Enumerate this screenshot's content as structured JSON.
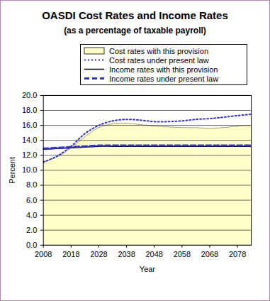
{
  "chart_data": {
    "type": "line",
    "title": "OASDI Cost Rates and Income Rates",
    "subtitle": "(as a percentage of taxable payroll)",
    "x_label": "Year",
    "y_label": "Percent",
    "x": [
      2008,
      2013,
      2018,
      2023,
      2028,
      2033,
      2038,
      2043,
      2048,
      2053,
      2058,
      2063,
      2068,
      2073,
      2078,
      2083
    ],
    "series": [
      {
        "name": "Cost rates with this provision",
        "type": "area",
        "color": "#ffffcc",
        "line_style": "solid",
        "values": [
          11.1,
          11.8,
          13.0,
          14.5,
          15.7,
          16.2,
          16.3,
          16.1,
          15.9,
          15.8,
          15.7,
          15.7,
          15.6,
          15.7,
          15.9,
          16.0
        ]
      },
      {
        "name": "Cost rates under present law",
        "type": "line",
        "color": "#3333cc",
        "line_style": "dotted",
        "values": [
          11.1,
          11.9,
          13.2,
          14.9,
          16.0,
          16.6,
          16.8,
          16.7,
          16.5,
          16.5,
          16.6,
          16.8,
          16.9,
          17.1,
          17.3,
          17.5
        ]
      },
      {
        "name": "Income rates with this provision",
        "type": "line",
        "color": "#000000",
        "line_style": "solid",
        "values": [
          12.8,
          12.9,
          13.0,
          13.1,
          13.2,
          13.2,
          13.2,
          13.2,
          13.2,
          13.2,
          13.2,
          13.2,
          13.2,
          13.2,
          13.2,
          13.2
        ]
      },
      {
        "name": "Income rates under present law",
        "type": "line",
        "color": "#3333cc",
        "line_style": "dashed",
        "values": [
          12.9,
          13.0,
          13.1,
          13.2,
          13.3,
          13.3,
          13.3,
          13.3,
          13.3,
          13.3,
          13.3,
          13.3,
          13.3,
          13.3,
          13.3,
          13.3
        ]
      }
    ],
    "xlim": [
      2008,
      2083
    ],
    "xticks": [
      2008,
      2018,
      2028,
      2038,
      2048,
      2058,
      2068,
      2078
    ],
    "ylim": [
      0,
      20
    ],
    "yticks": [
      {
        "value": 0,
        "label": "0.0"
      },
      {
        "value": 2,
        "label": "2.0"
      },
      {
        "value": 4,
        "label": "4.0"
      },
      {
        "value": 6,
        "label": "6.0"
      },
      {
        "value": 8,
        "label": "8.0"
      },
      {
        "value": 10,
        "label": "10.0"
      },
      {
        "value": 12,
        "label": "12.0"
      },
      {
        "value": 14,
        "label": "14.0"
      },
      {
        "value": 16,
        "label": "16.0"
      },
      {
        "value": 18,
        "label": "18.0"
      },
      {
        "value": 20,
        "label": "20.0"
      }
    ],
    "grid": true,
    "legend": "top"
  }
}
